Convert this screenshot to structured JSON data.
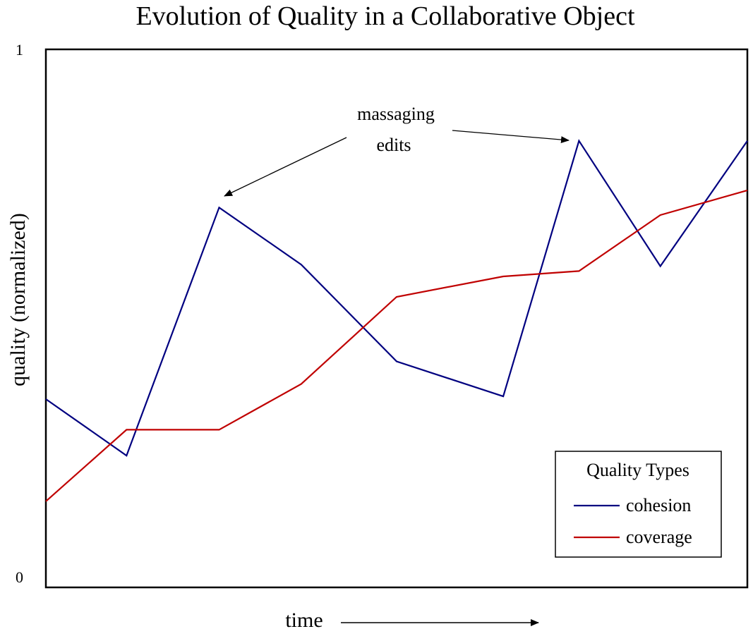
{
  "chart_data": {
    "type": "line",
    "title": "Evolution of Quality in a Collaborative Object",
    "xlabel": "time",
    "ylabel": "quality (normalized)",
    "ylim": [
      0,
      1
    ],
    "yticks": [
      "1",
      "0"
    ],
    "grid": false,
    "legend": {
      "title": "Quality Types",
      "position": "bottom-right"
    },
    "annotation": {
      "lines": [
        "massaging",
        "edits"
      ]
    },
    "series": [
      {
        "name": "cohesion",
        "color": "#000080",
        "points": [
          [
            0.0,
            0.35
          ],
          [
            0.115,
            0.245
          ],
          [
            0.247,
            0.706
          ],
          [
            0.364,
            0.6
          ],
          [
            0.5,
            0.42
          ],
          [
            0.652,
            0.355
          ],
          [
            0.76,
            0.83
          ],
          [
            0.876,
            0.597
          ],
          [
            1.0,
            0.83
          ]
        ]
      },
      {
        "name": "coverage",
        "color": "#c00000",
        "points": [
          [
            0.0,
            0.16
          ],
          [
            0.115,
            0.293
          ],
          [
            0.247,
            0.293
          ],
          [
            0.364,
            0.378
          ],
          [
            0.5,
            0.54
          ],
          [
            0.652,
            0.578
          ],
          [
            0.76,
            0.588
          ],
          [
            0.876,
            0.692
          ],
          [
            1.0,
            0.738
          ]
        ]
      }
    ]
  }
}
